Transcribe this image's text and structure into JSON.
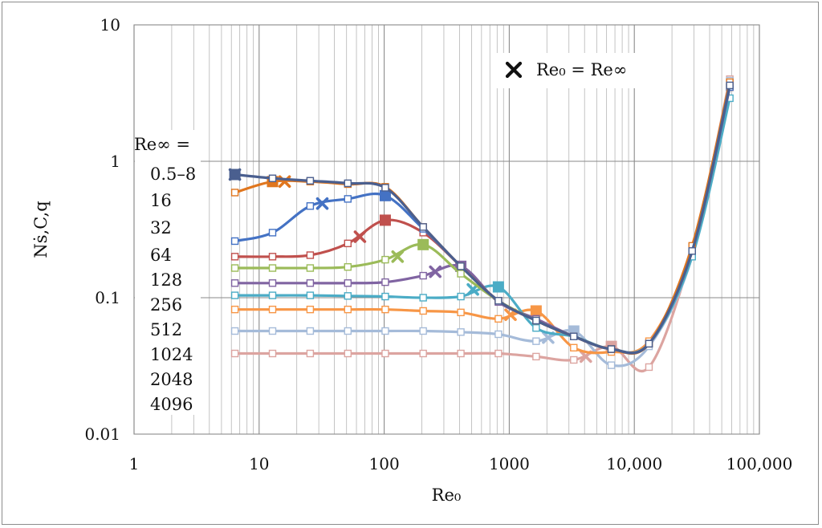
{
  "chart_data": {
    "type": "line",
    "xscale": "log",
    "yscale": "log",
    "xlim": [
      1,
      100000
    ],
    "ylim": [
      0.01,
      10
    ],
    "xlabel": "Re₀",
    "ylabel": "Nṡ,C,q",
    "xticks": [
      {
        "v": 1,
        "label": "1"
      },
      {
        "v": 10,
        "label": "10"
      },
      {
        "v": 100,
        "label": "100"
      },
      {
        "v": 1000,
        "label": "1000"
      },
      {
        "v": 10000,
        "label": "10,000"
      },
      {
        "v": 100000,
        "label": "100,000"
      }
    ],
    "yticks": [
      {
        "v": 0.01,
        "label": "0.01"
      },
      {
        "v": 0.1,
        "label": "0.1"
      },
      {
        "v": 1,
        "label": "1"
      },
      {
        "v": 10,
        "label": "10"
      }
    ],
    "legend_title": "Re∞ =",
    "marker_legend": "Re₀  =  Re∞",
    "series": [
      {
        "name": "0.5–8",
        "color": "#4a5f8f",
        "x": [
          6.4,
          12.8,
          25.6,
          51.2,
          102,
          205,
          410,
          819,
          1640,
          3280,
          6550,
          13100,
          29000,
          58000
        ],
        "y": [
          0.8,
          0.75,
          0.72,
          0.69,
          0.64,
          0.33,
          0.17,
          0.095,
          0.068,
          0.052,
          0.042,
          0.046,
          0.22,
          3.6
        ],
        "cross": {
          "x": 6.4,
          "y": 0.8
        },
        "big": {
          "x": 6.4,
          "y": 0.8
        }
      },
      {
        "name": "16",
        "color": "#e0761e",
        "x": [
          6.4,
          12.8,
          25.6,
          51.2,
          102,
          205,
          410,
          819,
          1640,
          3280,
          6550,
          13100,
          29000,
          58000
        ],
        "y": [
          0.59,
          0.71,
          0.71,
          0.68,
          0.65,
          0.33,
          0.17,
          0.095,
          0.068,
          0.052,
          0.042,
          0.046,
          0.24,
          3.8
        ],
        "cross": {
          "x": 16,
          "y": 0.71
        },
        "big": {
          "x": 12.8,
          "y": 0.71
        }
      },
      {
        "name": "32",
        "color": "#4472c4",
        "x": [
          6.4,
          12.8,
          25.6,
          51.2,
          102,
          205,
          410,
          819,
          1640,
          3280,
          6550,
          13100,
          29000,
          58000
        ],
        "y": [
          0.26,
          0.3,
          0.47,
          0.53,
          0.56,
          0.32,
          0.17,
          0.095,
          0.068,
          0.052,
          0.042,
          0.046,
          0.22,
          3.5
        ],
        "cross": {
          "x": 32,
          "y": 0.49
        },
        "big": {
          "x": 102,
          "y": 0.56
        }
      },
      {
        "name": "64",
        "color": "#c0504d",
        "x": [
          6.4,
          12.8,
          25.6,
          51.2,
          102,
          205,
          410,
          819,
          1640,
          3280,
          6550,
          13100,
          29000,
          58000
        ],
        "y": [
          0.2,
          0.2,
          0.205,
          0.25,
          0.37,
          0.3,
          0.17,
          0.095,
          0.068,
          0.052,
          0.042,
          0.046,
          0.22,
          3.5
        ],
        "cross": {
          "x": 64,
          "y": 0.28
        },
        "big": {
          "x": 102,
          "y": 0.37
        }
      },
      {
        "name": "128",
        "color": "#9bbb59",
        "x": [
          6.4,
          12.8,
          25.6,
          51.2,
          102,
          205,
          410,
          819,
          1640,
          3280,
          6550,
          13100,
          29000,
          58000
        ],
        "y": [
          0.165,
          0.165,
          0.165,
          0.168,
          0.19,
          0.245,
          0.15,
          0.095,
          0.068,
          0.052,
          0.042,
          0.046,
          0.22,
          3.5
        ],
        "cross": {
          "x": 128,
          "y": 0.2
        },
        "big": {
          "x": 205,
          "y": 0.245
        }
      },
      {
        "name": "256",
        "color": "#8064a2",
        "x": [
          6.4,
          12.8,
          25.6,
          51.2,
          102,
          205,
          410,
          819,
          1640,
          3280,
          6550,
          13100,
          29000,
          58000
        ],
        "y": [
          0.128,
          0.128,
          0.128,
          0.128,
          0.13,
          0.145,
          0.17,
          0.093,
          0.07,
          0.052,
          0.042,
          0.046,
          0.22,
          3.5
        ],
        "cross": {
          "x": 256,
          "y": 0.155
        },
        "big": {
          "x": 410,
          "y": 0.17
        }
      },
      {
        "name": "512",
        "color": "#4bacc6",
        "x": [
          6.4,
          12.8,
          25.6,
          51.2,
          102,
          205,
          410,
          819,
          1640,
          3280,
          6550,
          13100,
          29000,
          58000
        ],
        "y": [
          0.104,
          0.104,
          0.104,
          0.103,
          0.102,
          0.1,
          0.102,
          0.12,
          0.06,
          0.052,
          0.042,
          0.046,
          0.2,
          2.9
        ],
        "cross": {
          "x": 512,
          "y": 0.115
        },
        "big": {
          "x": 819,
          "y": 0.12
        }
      },
      {
        "name": "1024",
        "color": "#f79646",
        "x": [
          6.4,
          12.8,
          25.6,
          51.2,
          102,
          205,
          410,
          819,
          1640,
          3280,
          6550,
          13100,
          29000,
          58000
        ],
        "y": [
          0.082,
          0.082,
          0.082,
          0.082,
          0.082,
          0.08,
          0.078,
          0.07,
          0.08,
          0.043,
          0.04,
          0.048,
          0.22,
          3.5
        ],
        "cross": {
          "x": 1024,
          "y": 0.075
        },
        "big": {
          "x": 1640,
          "y": 0.08
        }
      },
      {
        "name": "2048",
        "color": "#a5bbd9",
        "x": [
          6.4,
          12.8,
          25.6,
          51.2,
          102,
          205,
          410,
          819,
          1640,
          3280,
          6550,
          13100,
          29000,
          58000
        ],
        "y": [
          0.057,
          0.057,
          0.057,
          0.057,
          0.057,
          0.057,
          0.056,
          0.054,
          0.048,
          0.057,
          0.032,
          0.044,
          0.2,
          3.9
        ],
        "cross": {
          "x": 2048,
          "y": 0.051
        },
        "big": {
          "x": 3280,
          "y": 0.057
        }
      },
      {
        "name": "4096",
        "color": "#dca4a0",
        "x": [
          6.4,
          12.8,
          25.6,
          51.2,
          102,
          205,
          410,
          819,
          1640,
          3280,
          6550,
          13100,
          29000,
          58000
        ],
        "y": [
          0.039,
          0.039,
          0.039,
          0.039,
          0.039,
          0.039,
          0.039,
          0.039,
          0.037,
          0.035,
          0.044,
          0.031,
          0.22,
          4.0
        ],
        "cross": {
          "x": 4096,
          "y": 0.037
        },
        "big": {
          "x": 6550,
          "y": 0.044
        }
      }
    ]
  }
}
